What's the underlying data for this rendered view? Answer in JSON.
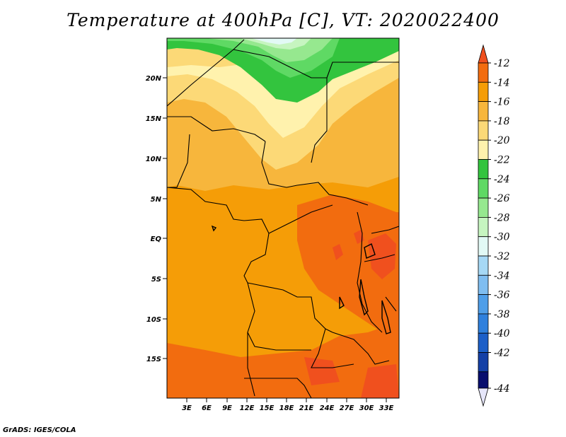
{
  "title": "Temperature at 400hPa [C], VT: 2020022400",
  "footer": "GrADS: IGES/COLA",
  "map": {
    "lat_labels": [
      "20N",
      "15N",
      "10N",
      "5N",
      "EQ",
      "5S",
      "10S",
      "15S"
    ],
    "lon_labels": [
      "3E",
      "6E",
      "9E",
      "12E",
      "15E",
      "18E",
      "21E",
      "24E",
      "27E",
      "30E",
      "33E"
    ]
  },
  "colorbar": {
    "levels": [
      "-12",
      "-14",
      "-16",
      "-18",
      "-20",
      "-22",
      "-24",
      "-26",
      "-28",
      "-30",
      "-32",
      "-34",
      "-36",
      "-38",
      "-40",
      "-42",
      "-44"
    ],
    "colors": {
      "top_arrow": "#f0501e",
      "bands": [
        "#f26c0f",
        "#f59d07",
        "#f7b63c",
        "#fcd977",
        "#fff2ad",
        "#33c43e",
        "#5fd964",
        "#96e88f",
        "#c6f5c0",
        "#e2f9f5",
        "#a6d8f5",
        "#7fbdf0",
        "#4f9ee8",
        "#2f80dd",
        "#1c5fc8",
        "#1440a6"
      ],
      "bottom_band": "#080e6e",
      "bottom_arrow": "#e6e6fa"
    }
  },
  "field_colors": {
    "green_dark": "#33c43e",
    "green_mid": "#5fd964",
    "green_light": "#96e88f",
    "pale_cyan": "#e2f9f5",
    "yellow_pale": "#fff2ad",
    "yellow": "#fcd977",
    "orange_light": "#f7b63c",
    "orange": "#f59d07",
    "orange_dark": "#f26c0f",
    "red_orange": "#f0501e"
  }
}
